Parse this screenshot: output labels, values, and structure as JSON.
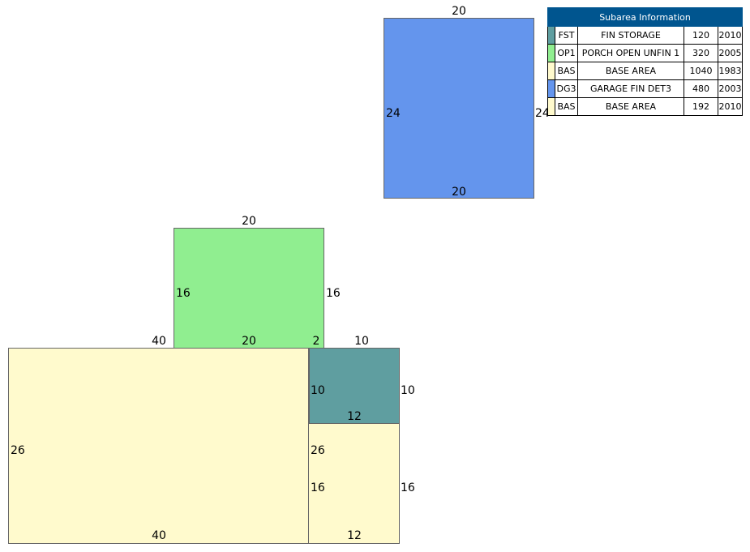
{
  "legend": {
    "title": "Subarea Information",
    "rows": [
      {
        "color": "#5f9ea0",
        "code": "FST",
        "description": "FIN STORAGE",
        "area": "120",
        "year": "2010"
      },
      {
        "color": "#90ee90",
        "code": "OP1",
        "description": "PORCH OPEN UNFIN 1",
        "area": "320",
        "year": "2005"
      },
      {
        "color": "#fffacd",
        "code": "BAS",
        "description": "BASE AREA",
        "area": "1040",
        "year": "1983"
      },
      {
        "color": "#6495ed",
        "code": "DG3",
        "description": "GARAGE FIN DET3",
        "area": "480",
        "year": "2003"
      },
      {
        "color": "#fffacd",
        "code": "BAS",
        "description": "BASE AREA",
        "area": "192",
        "year": "2010"
      }
    ]
  },
  "sketch": {
    "garage": {
      "color": "#6495ed",
      "top": "20",
      "left": "24",
      "right": "24",
      "bottom": "20"
    },
    "porch": {
      "color": "#90ee90",
      "top": "20",
      "left": "16",
      "right": "16",
      "bottom": "20"
    },
    "base_main": {
      "color": "#fffacd",
      "top": "40",
      "left": "26",
      "bottom": "40",
      "right": "26"
    },
    "storage": {
      "color": "#5f9ea0",
      "top": "10",
      "left": "10",
      "right": "10",
      "bottom": "12",
      "offset": "2"
    },
    "base_addition": {
      "color": "#fffacd",
      "left": "16",
      "right": "16",
      "bottom": "12"
    }
  }
}
